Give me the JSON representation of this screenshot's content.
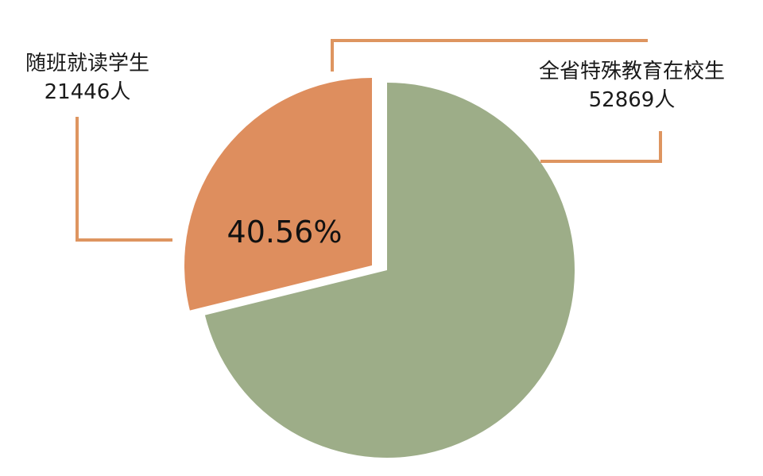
{
  "chart_data": {
    "type": "pie",
    "slices": [
      {
        "label": "随班就读学生",
        "value_text": "21446人",
        "value": 21446,
        "percent_label": "40.56%",
        "color": "#DE8E5E",
        "exploded": true
      },
      {
        "label": "全省特殊教育在校生",
        "value_text": "52869人",
        "value": 52869,
        "color": "#9DAD88",
        "exploded": false
      }
    ],
    "leader_line_color": "#DE9560",
    "start": "12 o'clock",
    "legend": "none"
  }
}
